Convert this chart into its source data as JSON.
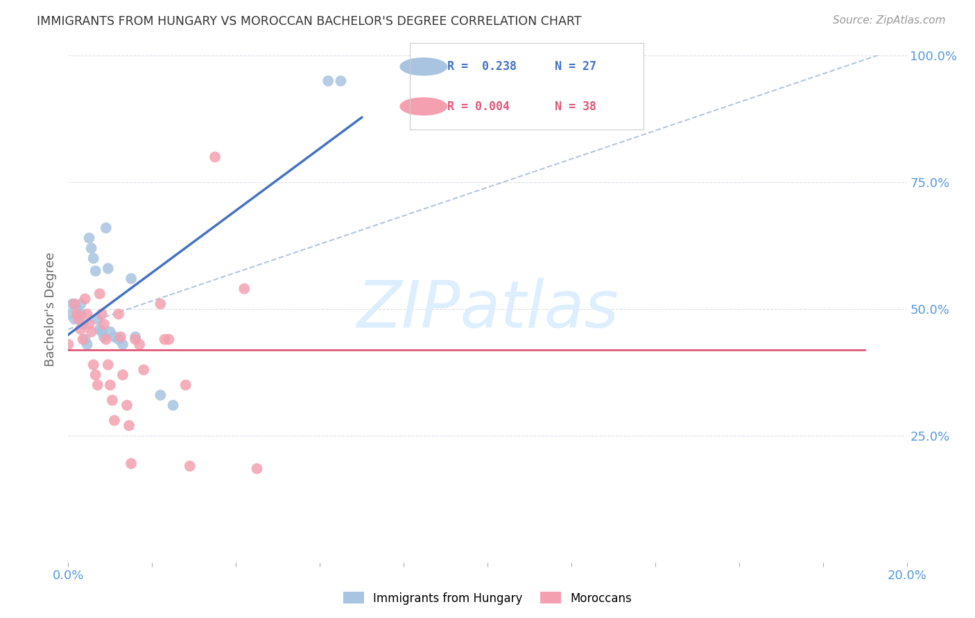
{
  "title": "IMMIGRANTS FROM HUNGARY VS MOROCCAN BACHELOR'S DEGREE CORRELATION CHART",
  "source": "Source: ZipAtlas.com",
  "ylabel": "Bachelor's Degree",
  "legend_hungary": "Immigrants from Hungary",
  "legend_morocco": "Moroccans",
  "hungary_color": "#a8c4e0",
  "morocco_color": "#f4a0b0",
  "hungary_line_color": "#4472c4",
  "morocco_line_color": "#e05878",
  "dashed_line_color": "#a0b8d8",
  "watermark_text": "ZIPatlas",
  "hungary_dots": [
    [
      0.0,
      49.0
    ],
    [
      0.1,
      51.0
    ],
    [
      0.15,
      48.0
    ],
    [
      0.2,
      50.0
    ],
    [
      0.3,
      51.0
    ],
    [
      0.3,
      49.0
    ],
    [
      0.35,
      47.0
    ],
    [
      0.4,
      44.0
    ],
    [
      0.45,
      43.0
    ],
    [
      0.5,
      64.0
    ],
    [
      0.55,
      62.0
    ],
    [
      0.6,
      60.0
    ],
    [
      0.65,
      57.5
    ],
    [
      0.7,
      48.0
    ],
    [
      0.75,
      46.0
    ],
    [
      0.8,
      45.5
    ],
    [
      0.85,
      44.5
    ],
    [
      0.9,
      66.0
    ],
    [
      0.95,
      58.0
    ],
    [
      1.0,
      45.5
    ],
    [
      1.1,
      44.5
    ],
    [
      1.2,
      44.0
    ],
    [
      1.3,
      43.0
    ],
    [
      1.5,
      56.0
    ],
    [
      1.6,
      44.5
    ],
    [
      2.2,
      33.0
    ],
    [
      2.5,
      31.0
    ],
    [
      6.2,
      95.0
    ],
    [
      6.5,
      95.0
    ]
  ],
  "morocco_dots": [
    [
      0.0,
      43.0
    ],
    [
      0.15,
      51.0
    ],
    [
      0.2,
      49.0
    ],
    [
      0.25,
      48.0
    ],
    [
      0.3,
      46.0
    ],
    [
      0.35,
      44.0
    ],
    [
      0.4,
      52.0
    ],
    [
      0.45,
      49.0
    ],
    [
      0.5,
      47.0
    ],
    [
      0.55,
      45.5
    ],
    [
      0.6,
      39.0
    ],
    [
      0.65,
      37.0
    ],
    [
      0.7,
      35.0
    ],
    [
      0.75,
      53.0
    ],
    [
      0.8,
      49.0
    ],
    [
      0.85,
      47.0
    ],
    [
      0.9,
      44.0
    ],
    [
      0.95,
      39.0
    ],
    [
      1.0,
      35.0
    ],
    [
      1.05,
      32.0
    ],
    [
      1.1,
      28.0
    ],
    [
      1.2,
      49.0
    ],
    [
      1.25,
      44.5
    ],
    [
      1.3,
      37.0
    ],
    [
      1.4,
      31.0
    ],
    [
      1.45,
      27.0
    ],
    [
      1.5,
      19.5
    ],
    [
      1.6,
      44.0
    ],
    [
      1.7,
      43.0
    ],
    [
      1.8,
      38.0
    ],
    [
      2.2,
      51.0
    ],
    [
      2.3,
      44.0
    ],
    [
      2.4,
      44.0
    ],
    [
      2.8,
      35.0
    ],
    [
      2.9,
      19.0
    ],
    [
      3.5,
      80.0
    ],
    [
      4.2,
      54.0
    ],
    [
      4.5,
      18.5
    ]
  ],
  "xlim": [
    0,
    20.0
  ],
  "ylim": [
    0,
    100.0
  ],
  "ytick_positions": [
    25,
    50,
    75,
    100
  ],
  "ytick_labels": [
    "25.0%",
    "50.0%",
    "75.0%",
    "100.0%"
  ],
  "xtick_labels_show": [
    "0.0%",
    "20.0%"
  ],
  "background_color": "#ffffff",
  "grid_color": "#dde0e8",
  "title_color": "#333333",
  "axis_label_color": "#5599dd",
  "watermark_color": "#ddeeff"
}
